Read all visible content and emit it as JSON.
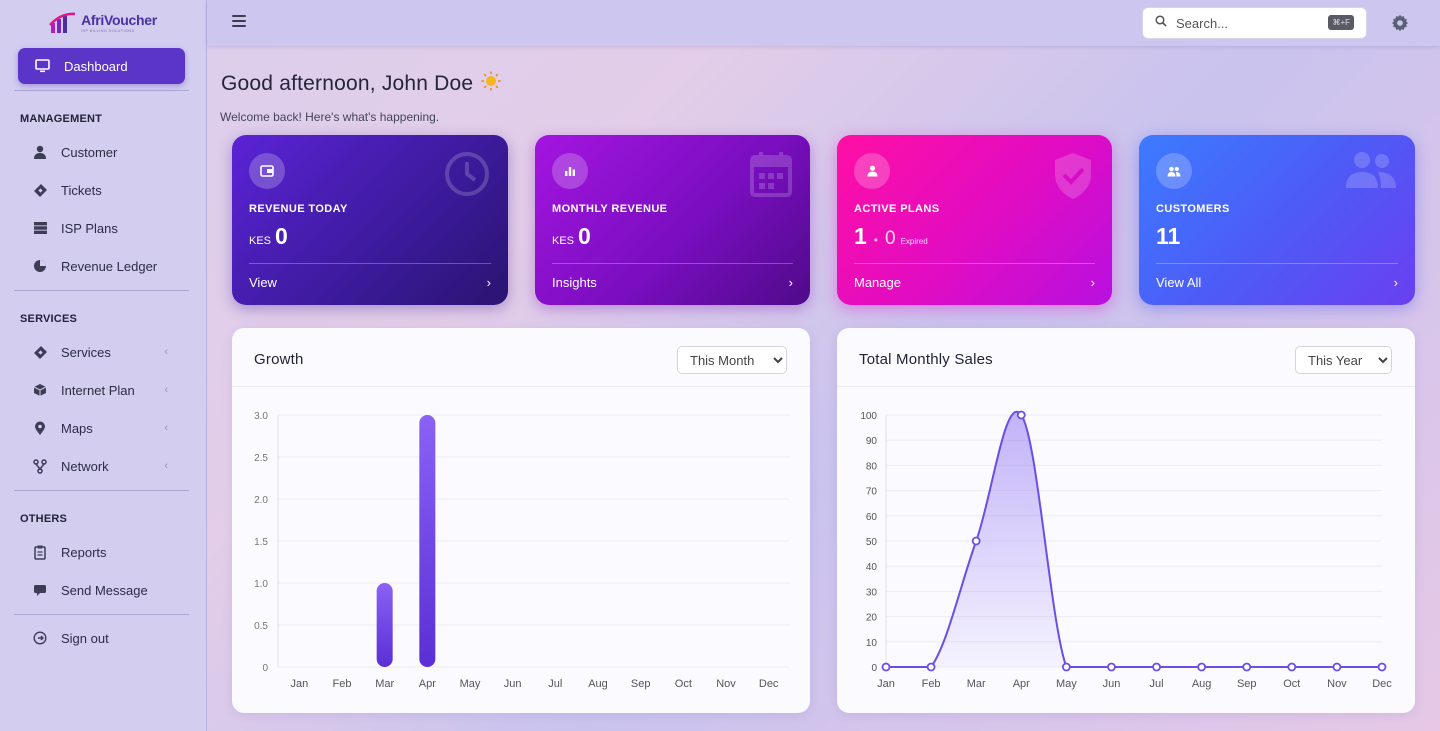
{
  "brand": {
    "name": "AfriVoucher",
    "tagline": "ISP BILLING SOLUTIONS"
  },
  "sidebar": {
    "active": {
      "label": "Dashboard",
      "icon": "monitor-icon"
    },
    "sections": [
      {
        "title": "MANAGEMENT",
        "items": [
          {
            "label": "Customer",
            "icon": "user-icon"
          },
          {
            "label": "Tickets",
            "icon": "ticket-icon"
          },
          {
            "label": "ISP Plans",
            "icon": "server-icon"
          },
          {
            "label": "Revenue Ledger",
            "icon": "pie-chart-icon"
          }
        ]
      },
      {
        "title": "SERVICES",
        "items": [
          {
            "label": "Services",
            "icon": "ticket-icon",
            "expandable": true
          },
          {
            "label": "Internet Plan",
            "icon": "cube-icon",
            "expandable": true
          },
          {
            "label": "Maps",
            "icon": "map-pin-icon",
            "expandable": true
          },
          {
            "label": "Network",
            "icon": "network-icon",
            "expandable": true
          }
        ]
      },
      {
        "title": "OTHERS",
        "items": [
          {
            "label": "Reports",
            "icon": "report-icon"
          },
          {
            "label": "Send Message",
            "icon": "message-icon"
          }
        ]
      }
    ],
    "signout": {
      "label": "Sign out",
      "icon": "sign-out-icon"
    }
  },
  "header": {
    "search_placeholder": "Search...",
    "search_shortcut": "⌘+F"
  },
  "greeting": "Good afternoon, John Doe",
  "welcome": "Welcome back! Here's what's happening.",
  "cards": [
    {
      "title": "REVENUE TODAY",
      "currency": "KES",
      "value": "0",
      "link": "View",
      "color": "#4a1fc0"
    },
    {
      "title": "MONTHLY REVENUE",
      "currency": "KES",
      "value": "0",
      "link": "Insights",
      "color": "#8a10cc"
    },
    {
      "title": "ACTIVE PLANS",
      "value": "1",
      "secondary": "0",
      "secondary_label": "Expired",
      "link": "Manage",
      "color": "#ef0eb8"
    },
    {
      "title": "CUSTOMERS",
      "value": "11",
      "link": "View All",
      "color": "#4d5cf7"
    }
  ],
  "growth": {
    "title": "Growth",
    "filter": "This Month",
    "options": [
      "This Month"
    ]
  },
  "sales": {
    "title": "Total Monthly Sales",
    "filter": "This Year",
    "options": [
      "This Year"
    ]
  },
  "chart_data": [
    {
      "type": "bar",
      "title": "Growth",
      "categories": [
        "Jan",
        "Feb",
        "Mar",
        "Apr",
        "May",
        "Jun",
        "Jul",
        "Aug",
        "Sep",
        "Oct",
        "Nov",
        "Dec"
      ],
      "values": [
        0,
        0,
        1,
        3,
        0,
        0,
        0,
        0,
        0,
        0,
        0,
        0
      ],
      "ylim": [
        0,
        3
      ],
      "yticks": [
        "0",
        "0.5",
        "1.0",
        "1.5",
        "2.0",
        "2.5",
        "3.0"
      ],
      "grid": true,
      "color": "#6b3fe6"
    },
    {
      "type": "area",
      "title": "Total Monthly Sales",
      "categories": [
        "Jan",
        "Feb",
        "Mar",
        "Apr",
        "May",
        "Jun",
        "Jul",
        "Aug",
        "Sep",
        "Oct",
        "Nov",
        "Dec"
      ],
      "values": [
        0,
        0,
        50,
        100,
        0,
        0,
        0,
        0,
        0,
        0,
        0,
        0
      ],
      "ylim": [
        0,
        100
      ],
      "yticks": [
        "0",
        "10",
        "20",
        "30",
        "40",
        "50",
        "60",
        "70",
        "80",
        "90",
        "100"
      ],
      "grid": true,
      "color": "#6b4ee6"
    }
  ]
}
